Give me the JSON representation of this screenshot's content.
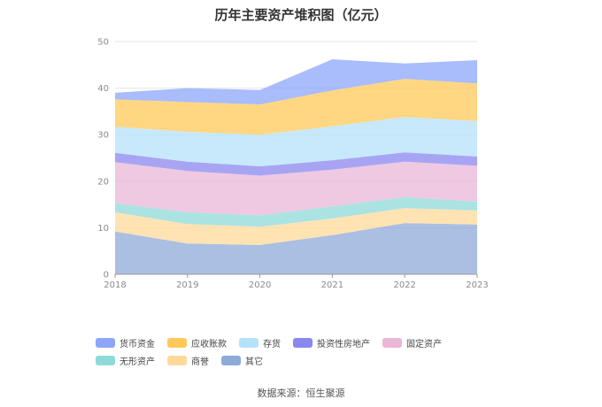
{
  "chart_data": {
    "type": "area",
    "stacked": true,
    "title": "历年主要资产堆积图（亿元）",
    "x": [
      "2018",
      "2019",
      "2020",
      "2021",
      "2022",
      "2023"
    ],
    "ylim": [
      0,
      50
    ],
    "yticks": [
      "0",
      "10",
      "20",
      "30",
      "40",
      "50"
    ],
    "grid": true,
    "legend_position": "bottom",
    "series": [
      {
        "name": "其它",
        "color": "#8eaad8",
        "values": [
          9.2,
          6.6,
          6.3,
          8.4,
          11.0,
          10.7
        ]
      },
      {
        "name": "商誉",
        "color": "#ffd99a",
        "values": [
          4.1,
          4.2,
          3.9,
          3.6,
          3.2,
          3.0
        ]
      },
      {
        "name": "无形资产",
        "color": "#8fdad9",
        "values": [
          2.0,
          2.5,
          2.5,
          2.6,
          2.4,
          1.9
        ]
      },
      {
        "name": "固定资产",
        "color": "#eab7d8",
        "values": [
          8.8,
          8.9,
          8.5,
          7.9,
          7.6,
          7.7
        ]
      },
      {
        "name": "投资性房地产",
        "color": "#8a87ef",
        "values": [
          2.0,
          2.0,
          2.0,
          2.0,
          2.0,
          2.0
        ]
      },
      {
        "name": "存货",
        "color": "#b5e2fb",
        "values": [
          5.6,
          6.4,
          6.8,
          7.3,
          7.6,
          7.6
        ]
      },
      {
        "name": "应收账款",
        "color": "#ffc95a",
        "values": [
          5.9,
          6.4,
          6.5,
          7.7,
          8.2,
          8.1
        ]
      },
      {
        "name": "货币资金",
        "color": "#8ca6fb",
        "values": [
          1.4,
          3.0,
          3.1,
          6.7,
          3.3,
          5.0
        ]
      }
    ],
    "legend_order": [
      "货币资金",
      "应收账款",
      "存货",
      "投资性房地产",
      "固定资产",
      "无形资产",
      "商誉",
      "其它"
    ]
  },
  "source_text": "数据来源：恒生聚源"
}
